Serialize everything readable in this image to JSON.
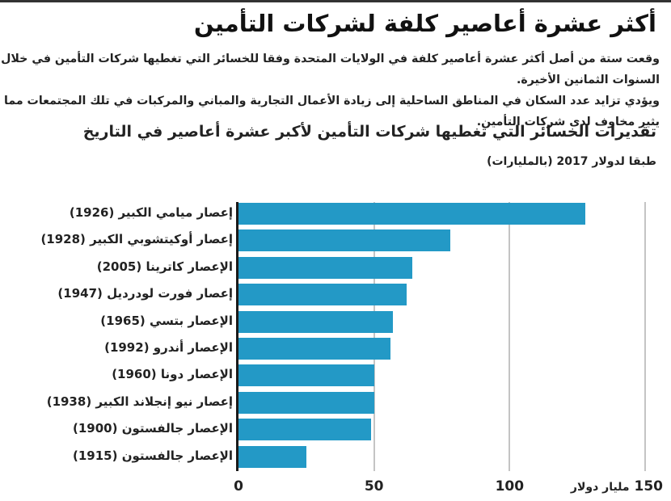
{
  "header": {
    "title": "أكثر عشرة أعاصير كلفة لشركات التأمين"
  },
  "description": {
    "line1": "وقعت ستة من أصل أكثر عشرة أعاصير كلفة في الولايات المتحدة وفقا للخسائر التي تغطيها شركات التأمين في خلال السنوات الثمانين الأخيرة.",
    "line2": "ويؤدي تزايد عدد السكان في المناطق الساحلية إلى زيادة الأعمال التجارية والمباني والمركبات في تلك المجتمعات مما يثير مخاوف لدى شركات التأمين."
  },
  "chart": {
    "title": "تقديرات الخسائر التي تغطيها شركات التأمين لأكبر عشرة أعاصير في التاريخ",
    "subtitle": "طبقا لدولار 2017 (بالمليارات)",
    "bar_color": "#2399c6",
    "ticks": [
      "0",
      "50",
      "100",
      "150"
    ],
    "unit_label": "مليار دولار"
  },
  "chart_data": {
    "type": "bar",
    "orientation": "horizontal",
    "title": "تقديرات الخسائر التي تغطيها شركات التأمين لأكبر عشرة أعاصير في التاريخ",
    "subtitle": "طبقا لدولار 2017 (بالمليارات)",
    "xlabel": "مليار دولار",
    "ylabel": "",
    "xlim": [
      0,
      150
    ],
    "xticks": [
      0,
      50,
      100,
      150
    ],
    "grid": true,
    "categories": [
      "إعصار ميامي الكبير (1926)",
      "إعصار أوكيتشوبي الكبير (1928)",
      "الإعصار كاترينا (2005)",
      "إعصار فورت لودرديل (1947)",
      "الإعصار بتسي (1965)",
      "الإعصار أندرو (1992)",
      "الإعصار دونا (1960)",
      "إعصار نيو إنجلاند الكبير (1938)",
      "الإعصار جالفستون (1900)",
      "الإعصار جالفستون (1915)"
    ],
    "values": [
      128,
      78,
      64,
      62,
      57,
      56,
      50,
      50,
      49,
      25
    ]
  }
}
